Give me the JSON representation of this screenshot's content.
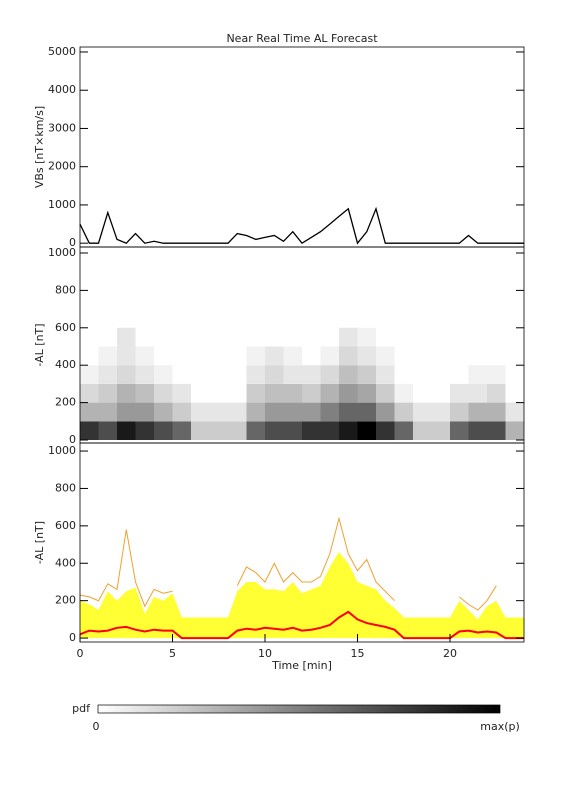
{
  "chart_data": [
    {
      "type": "line",
      "title": "Near Real Time AL Forecast",
      "ylabel": "VBs [nT×km/s]",
      "color": "#000000",
      "x": [
        0,
        0.5,
        1,
        1.5,
        2,
        2.5,
        3,
        3.5,
        4,
        4.5,
        5,
        5.5,
        6,
        6.5,
        7,
        7.5,
        8,
        8.5,
        9,
        9.5,
        10,
        10.5,
        11,
        11.5,
        12,
        12.5,
        13,
        13.5,
        14,
        14.5,
        15,
        15.5,
        16,
        16.5,
        17,
        17.5,
        18,
        18.5,
        19,
        19.5,
        20,
        20.5,
        21,
        21.5,
        22,
        22.5,
        23,
        23.5,
        24
      ],
      "values": [
        500,
        0,
        0,
        800,
        100,
        0,
        250,
        0,
        50,
        0,
        0,
        0,
        0,
        0,
        0,
        0,
        0,
        250,
        200,
        100,
        150,
        200,
        50,
        300,
        0,
        150,
        300,
        500,
        700,
        900,
        0,
        300,
        900,
        0,
        0,
        0,
        0,
        0,
        0,
        0,
        0,
        0,
        200,
        0,
        0,
        0,
        0,
        0,
        0
      ],
      "xlim": [
        0,
        24
      ],
      "ylim": [
        -100,
        5130
      ],
      "yticks": [
        0,
        1000,
        2000,
        3000,
        4000,
        5000
      ]
    },
    {
      "type": "heatmap",
      "ylabel": "-AL [nT]",
      "x_bins": [
        0,
        1,
        2,
        3,
        4,
        5,
        6,
        7,
        8,
        9,
        10,
        11,
        12,
        13,
        14,
        15,
        16,
        17,
        18,
        19,
        20,
        21,
        22,
        23,
        24
      ],
      "y_bins": [
        0,
        100,
        200,
        300,
        400,
        500,
        600
      ],
      "values": [
        [
          0.8,
          0.7,
          0.9,
          0.8,
          0.7,
          0.6,
          0.2,
          0.2,
          0.2,
          0.6,
          0.7,
          0.7,
          0.8,
          0.8,
          0.9,
          1.0,
          0.8,
          0.6,
          0.2,
          0.2,
          0.6,
          0.7,
          0.7,
          0.3
        ],
        [
          0.3,
          0.3,
          0.4,
          0.4,
          0.3,
          0.2,
          0.1,
          0.1,
          0.1,
          0.3,
          0.4,
          0.4,
          0.4,
          0.5,
          0.6,
          0.6,
          0.4,
          0.2,
          0.1,
          0.1,
          0.2,
          0.3,
          0.3,
          0.1
        ],
        [
          0.15,
          0.2,
          0.3,
          0.25,
          0.15,
          0.1,
          0,
          0,
          0,
          0.2,
          0.25,
          0.25,
          0.2,
          0.3,
          0.4,
          0.35,
          0.2,
          0.05,
          0,
          0,
          0.1,
          0.1,
          0.15,
          0
        ],
        [
          0.05,
          0.1,
          0.15,
          0.1,
          0.05,
          0,
          0,
          0,
          0,
          0.1,
          0.15,
          0.1,
          0.1,
          0.15,
          0.25,
          0.2,
          0.1,
          0,
          0,
          0,
          0,
          0.05,
          0.05,
          0
        ],
        [
          0,
          0.05,
          0.1,
          0.05,
          0,
          0,
          0,
          0,
          0,
          0.05,
          0.1,
          0.05,
          0,
          0.05,
          0.15,
          0.1,
          0.05,
          0,
          0,
          0,
          0,
          0,
          0,
          0
        ],
        [
          0,
          0,
          0.1,
          0,
          0,
          0,
          0,
          0,
          0,
          0,
          0,
          0,
          0,
          0,
          0.1,
          0.05,
          0,
          0,
          0,
          0,
          0,
          0,
          0,
          0
        ]
      ],
      "xlim": [
        0,
        24
      ],
      "ylim": [
        -16,
        1032
      ],
      "yticks": [
        0,
        200,
        400,
        600,
        800,
        1000
      ]
    },
    {
      "type": "area",
      "ylabel": "-AL [nT]",
      "xlabel": "Time [min]",
      "x": [
        0,
        0.5,
        1,
        1.5,
        2,
        2.5,
        3,
        3.5,
        4,
        4.5,
        5,
        5.5,
        6,
        6.5,
        7,
        7.5,
        8,
        8.5,
        9,
        9.5,
        10,
        10.5,
        11,
        11.5,
        12,
        12.5,
        13,
        13.5,
        14,
        14.5,
        15,
        15.5,
        16,
        16.5,
        17,
        17.5,
        18,
        18.5,
        19,
        19.5,
        20,
        20.5,
        21,
        21.5,
        22,
        22.5,
        23,
        23.5,
        24
      ],
      "series": [
        {
          "kind": "area",
          "color": "#ffff33",
          "values": [
            200,
            180,
            150,
            250,
            200,
            250,
            270,
            130,
            220,
            200,
            240,
            110,
            110,
            110,
            110,
            110,
            110,
            250,
            300,
            300,
            260,
            260,
            250,
            300,
            240,
            260,
            280,
            380,
            460,
            400,
            300,
            280,
            260,
            200,
            160,
            110,
            110,
            110,
            110,
            110,
            110,
            200,
            150,
            100,
            170,
            200,
            110,
            110,
            110
          ]
        },
        {
          "kind": "line",
          "color": "#f0a030",
          "values": [
            230,
            220,
            200,
            290,
            260,
            580,
            300,
            170,
            260,
            240,
            250,
            null,
            null,
            null,
            null,
            null,
            null,
            280,
            380,
            350,
            300,
            400,
            300,
            350,
            300,
            300,
            330,
            450,
            640,
            450,
            360,
            420,
            300,
            250,
            200,
            null,
            null,
            null,
            null,
            null,
            null,
            220,
            180,
            150,
            200,
            280,
            null,
            null,
            null
          ]
        },
        {
          "kind": "line",
          "color": "#ff0000",
          "values": [
            20,
            40,
            35,
            40,
            55,
            60,
            45,
            35,
            45,
            40,
            40,
            0,
            0,
            0,
            0,
            0,
            0,
            40,
            50,
            45,
            55,
            50,
            45,
            55,
            40,
            45,
            55,
            70,
            110,
            140,
            100,
            80,
            70,
            60,
            45,
            0,
            0,
            0,
            0,
            0,
            0,
            35,
            40,
            30,
            35,
            30,
            0,
            0,
            0
          ]
        }
      ],
      "xlim": [
        0,
        24
      ],
      "ylim": [
        -21,
        1043
      ],
      "yticks": [
        0,
        200,
        400,
        600,
        800,
        1000
      ],
      "xticks": [
        0,
        5,
        10,
        15,
        20
      ]
    }
  ],
  "colorbar": {
    "label": "pdf",
    "min_label": "0",
    "max_label": "max(p)"
  }
}
